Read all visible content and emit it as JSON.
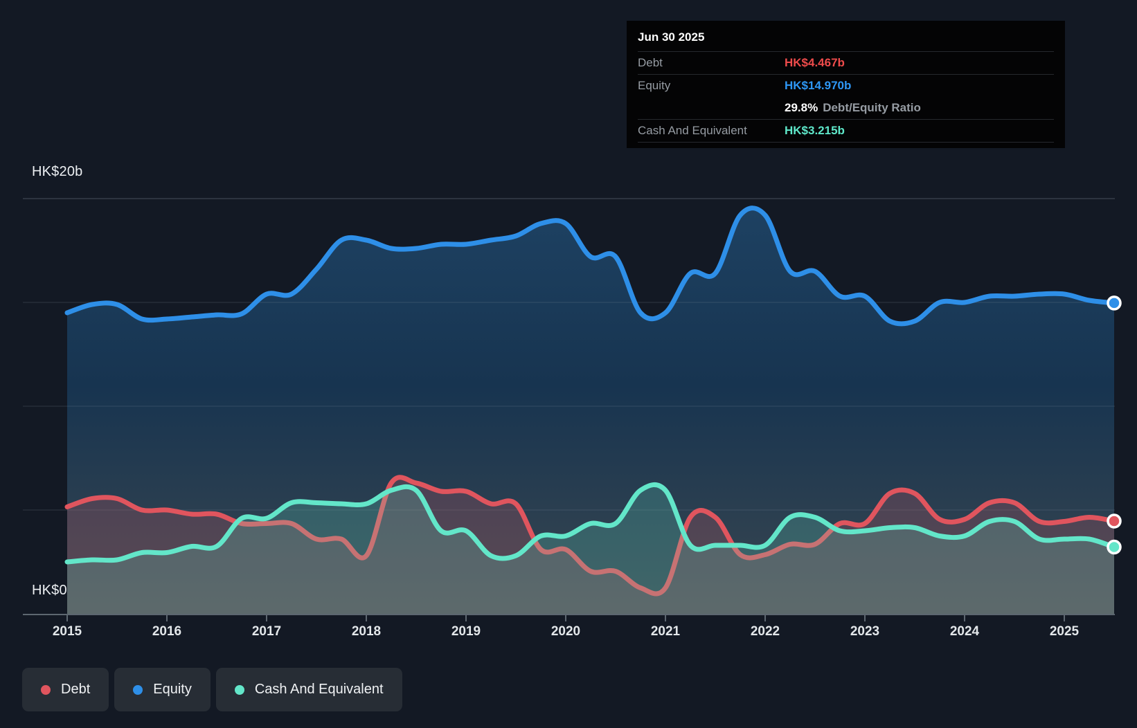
{
  "axis": {
    "y_top_label": "HK$20b",
    "y_zero_label": "HK$0",
    "years": [
      "2015",
      "2016",
      "2017",
      "2018",
      "2019",
      "2020",
      "2021",
      "2022",
      "2023",
      "2024",
      "2025"
    ]
  },
  "tooltip": {
    "date": "Jun 30 2025",
    "debt_label": "Debt",
    "debt_value": "HK$4.467b",
    "equity_label": "Equity",
    "equity_value": "HK$14.970b",
    "ratio_value": "29.8%",
    "ratio_label": "Debt/Equity Ratio",
    "cash_label": "Cash And Equivalent",
    "cash_value": "HK$3.215b"
  },
  "legend": {
    "items": [
      {
        "label": "Debt",
        "color": "#e0555e"
      },
      {
        "label": "Equity",
        "color": "#2e8fe8"
      },
      {
        "label": "Cash And Equivalent",
        "color": "#63e6c9"
      }
    ]
  },
  "colors": {
    "debt": "#e0555e",
    "equity": "#2e8fe8",
    "cash": "#63e6c9",
    "debt_fill": "rgba(224,90,100,0.20)",
    "cash_fill": "rgba(99,230,201,0.20)",
    "equity_fill_top": "#1e4263",
    "equity_fill_mid": "#173450",
    "equity_fill_bottom": "#3a4750",
    "tooltip_debt": "#ee4b4b",
    "tooltip_equity": "#2e97f5",
    "tooltip_cash": "#5fe8ca",
    "grid": "#8795a3",
    "axis_line": "#5d6770"
  },
  "chart_data": {
    "type": "area",
    "units": "HK$ billions",
    "x_unit": "year",
    "x_start": 2015,
    "x_step": 0.25,
    "x_end": 2025.5,
    "ylim": [
      0,
      20
    ],
    "y_gridlines_b": [
      20,
      15,
      10,
      5
    ],
    "grid": true,
    "legend_position": "bottom-left",
    "latest_point_date": "Jun 30 2025",
    "series": [
      {
        "name": "Equity",
        "color": "#2e8fe8",
        "latest_value_b": 14.97,
        "values": [
          14.5,
          14.9,
          14.9,
          14.2,
          14.2,
          14.3,
          14.4,
          14.45,
          15.4,
          15.4,
          16.6,
          18.0,
          18.0,
          17.6,
          17.6,
          17.8,
          17.8,
          18.0,
          18.2,
          18.8,
          18.8,
          17.2,
          17.2,
          14.5,
          14.5,
          16.4,
          16.4,
          19.2,
          19.2,
          16.5,
          16.5,
          15.3,
          15.3,
          14.1,
          14.1,
          15.0,
          15.0,
          15.3,
          15.3,
          15.4,
          15.4,
          15.1,
          14.97
        ]
      },
      {
        "name": "Debt",
        "color": "#e0555e",
        "latest_value_b": 4.467,
        "values": [
          5.15,
          5.55,
          5.55,
          5.0,
          5.0,
          4.8,
          4.8,
          4.35,
          4.35,
          4.35,
          3.6,
          3.6,
          2.8,
          6.3,
          6.3,
          5.9,
          5.9,
          5.3,
          5.3,
          3.1,
          3.1,
          2.05,
          2.05,
          1.25,
          1.25,
          4.65,
          4.65,
          2.85,
          2.85,
          3.35,
          3.35,
          4.35,
          4.35,
          5.8,
          5.8,
          4.55,
          4.55,
          5.35,
          5.35,
          4.45,
          4.45,
          4.65,
          4.467
        ]
      },
      {
        "name": "Cash And Equivalent",
        "color": "#63e6c9",
        "latest_value_b": 3.215,
        "values": [
          2.5,
          2.6,
          2.6,
          2.95,
          2.95,
          3.25,
          3.25,
          4.6,
          4.6,
          5.35,
          5.35,
          5.3,
          5.3,
          5.95,
          5.95,
          4.0,
          4.0,
          2.8,
          2.8,
          3.75,
          3.75,
          4.35,
          4.35,
          5.95,
          5.95,
          3.3,
          3.3,
          3.3,
          3.3,
          4.65,
          4.65,
          4.0,
          4.0,
          4.15,
          4.15,
          3.75,
          3.75,
          4.45,
          4.45,
          3.6,
          3.6,
          3.6,
          3.215
        ]
      }
    ],
    "debt_equity_ratio_pct": 29.8
  }
}
